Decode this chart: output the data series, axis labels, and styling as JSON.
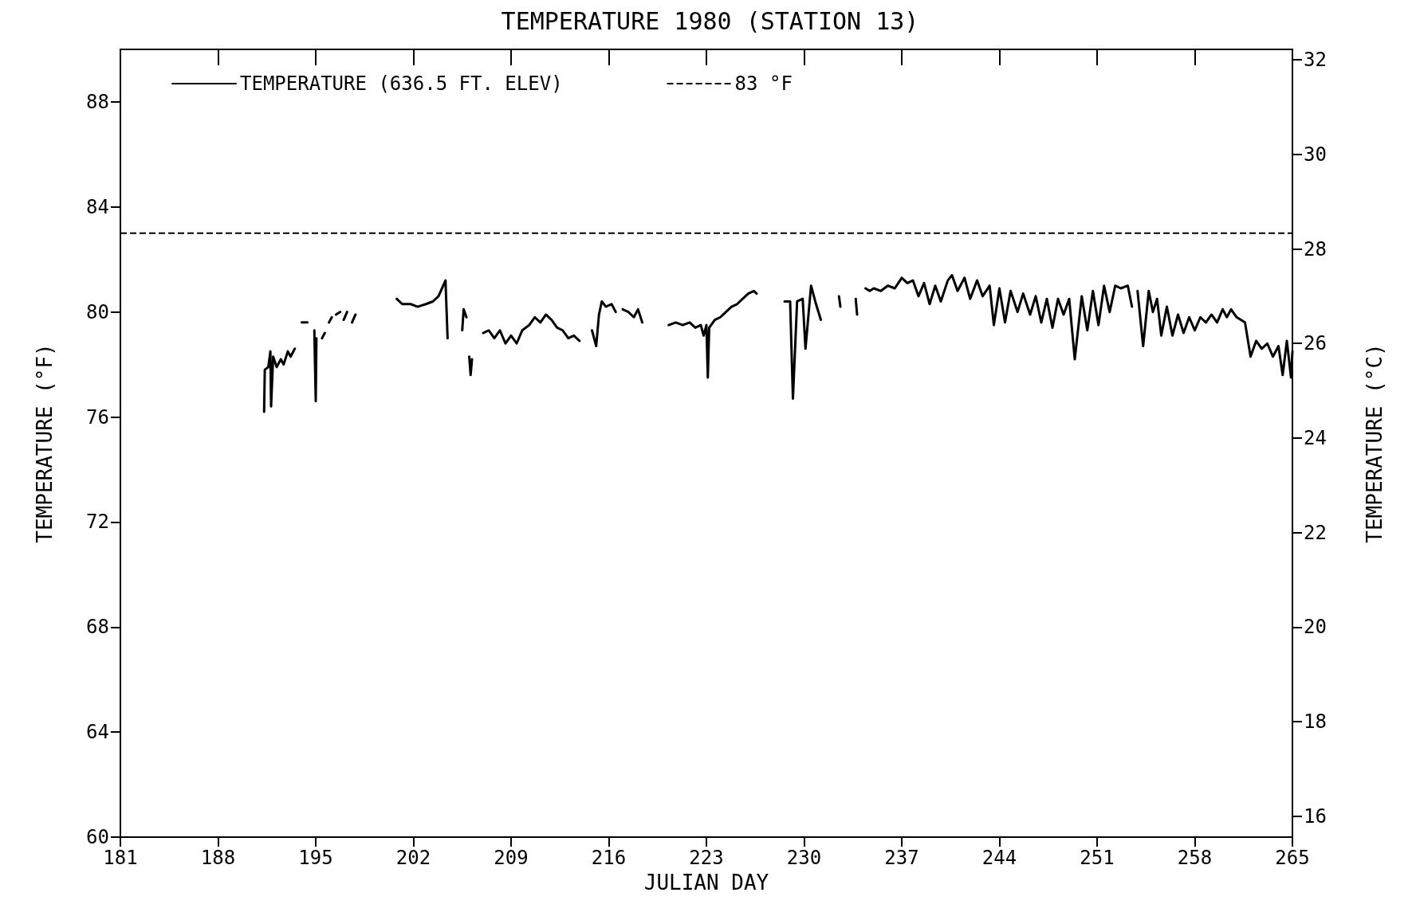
{
  "chart_data": {
    "type": "line",
    "title": "TEMPERATURE 1980 (STATION 13)",
    "xlabel": "JULIAN DAY",
    "ylabel": "TEMPERATURE (°F)",
    "y2label": "TEMPERATURE (°C)",
    "xlim": [
      181,
      265
    ],
    "xticks": [
      181,
      188,
      195,
      202,
      209,
      216,
      223,
      230,
      237,
      244,
      251,
      258,
      265
    ],
    "ylim": [
      60,
      90
    ],
    "yticks": [
      60,
      64,
      68,
      72,
      76,
      80,
      84,
      88
    ],
    "y2lim": [
      15.56,
      32.22
    ],
    "y2ticks": [
      16,
      18,
      20,
      22,
      24,
      26,
      28,
      30,
      32
    ],
    "grid": false,
    "legend": "top left",
    "marker": "none",
    "line_style": "solid",
    "ref_lines": [
      {
        "axis": "y",
        "value": 83,
        "label": "83 °F",
        "color": "#000000",
        "line_style": "dashed"
      }
    ],
    "series": [
      {
        "name": "TEMPERATURE (636.5 FT. ELEV)",
        "color": "#000000",
        "x": [
          191.3,
          191.35,
          191.6,
          191.75,
          191.8,
          191.95,
          192.2,
          192.5,
          192.7,
          193.0,
          193.2,
          193.5,
          193.6,
          194.0,
          194.4,
          194.5,
          194.9,
          195.0,
          195.05,
          195.1,
          195.45,
          195.65,
          195.7,
          195.95,
          196.15,
          196.2,
          196.45,
          196.75,
          196.8,
          197.0,
          197.25,
          197.3,
          197.6,
          197.85,
          197.9,
          200.8,
          201.2,
          201.8,
          202.3,
          202.9,
          203.4,
          203.8,
          204.3,
          204.45,
          204.5,
          205.5,
          205.6,
          205.8,
          205.9,
          206.0,
          206.1,
          206.2,
          206.3,
          207.0,
          207.4,
          207.8,
          208.2,
          208.6,
          209.0,
          209.4,
          209.8,
          210.3,
          210.7,
          211.1,
          211.5,
          211.9,
          212.3,
          212.7,
          213.1,
          213.5,
          213.9,
          214.0,
          214.8,
          215.1,
          215.3,
          215.5,
          215.8,
          216.2,
          216.5,
          216.7,
          217.0,
          217.4,
          217.8,
          218.1,
          218.4,
          218.5,
          220.3,
          220.8,
          221.3,
          221.8,
          222.2,
          222.6,
          222.8,
          223.0,
          223.1,
          223.2,
          223.6,
          224.0,
          224.4,
          224.8,
          225.2,
          225.6,
          226.0,
          226.4,
          226.6,
          226.7,
          228.6,
          229.0,
          229.2,
          229.5,
          229.9,
          230.1,
          230.5,
          230.8,
          231.2,
          231.3,
          232.5,
          232.6,
          232.7,
          233.7,
          233.8,
          233.9,
          234.4,
          234.7,
          235.0,
          235.5,
          236.0,
          236.5,
          237.0,
          237.4,
          237.8,
          238.2,
          238.6,
          239.0,
          239.4,
          239.8,
          240.3,
          240.6,
          241.0,
          241.5,
          241.9,
          242.4,
          242.8,
          243.3,
          243.6,
          244.0,
          244.4,
          244.8,
          245.3,
          245.7,
          246.2,
          246.6,
          247.0,
          247.4,
          247.8,
          248.2,
          248.6,
          249.0,
          249.4,
          249.9,
          250.3,
          250.7,
          251.1,
          251.5,
          251.9,
          252.3,
          252.7,
          253.2,
          253.5,
          253.6,
          253.9,
          254.3,
          254.7,
          255.0,
          255.3,
          255.6,
          256.0,
          256.4,
          256.8,
          257.2,
          257.6,
          258.0,
          258.4,
          258.8,
          259.2,
          259.6,
          260.0,
          260.3,
          260.6,
          261.0,
          261.6,
          262.0,
          262.4,
          262.8,
          263.2,
          263.6,
          264.0,
          264.3,
          264.6,
          264.9,
          265.0
        ],
        "values": [
          76.2,
          77.8,
          77.9,
          78.5,
          76.4,
          78.3,
          77.9,
          78.2,
          78.0,
          78.5,
          78.3,
          78.6,
          null,
          79.6,
          79.6,
          null,
          79.3,
          76.6,
          79.0,
          null,
          79.0,
          79.2,
          null,
          79.6,
          79.8,
          null,
          79.9,
          80.0,
          null,
          79.7,
          80.0,
          null,
          79.6,
          79.9,
          null,
          80.5,
          80.3,
          80.3,
          80.2,
          80.3,
          80.4,
          80.6,
          81.2,
          79.0,
          null,
          79.3,
          80.1,
          79.8,
          null,
          78.3,
          77.6,
          78.2,
          null,
          79.2,
          79.3,
          79.0,
          79.3,
          78.8,
          79.1,
          78.8,
          79.3,
          79.5,
          79.8,
          79.6,
          79.9,
          79.7,
          79.4,
          79.3,
          79.0,
          79.1,
          78.9,
          null,
          79.3,
          78.7,
          79.9,
          80.4,
          80.2,
          80.3,
          80.0,
          null,
          80.1,
          80.0,
          79.8,
          80.1,
          79.6,
          null,
          79.5,
          79.6,
          79.5,
          79.6,
          79.4,
          79.5,
          79.1,
          79.5,
          77.5,
          79.4,
          79.7,
          79.8,
          80.0,
          80.2,
          80.3,
          80.5,
          80.7,
          80.8,
          80.7,
          null,
          80.4,
          80.4,
          76.7,
          80.4,
          80.5,
          78.6,
          81.0,
          80.4,
          79.7,
          null,
          80.6,
          80.2,
          null,
          80.5,
          79.9,
          null,
          80.9,
          80.8,
          80.9,
          80.8,
          81.0,
          80.9,
          81.3,
          81.1,
          81.2,
          80.6,
          81.1,
          80.3,
          81.0,
          80.4,
          81.2,
          81.4,
          80.8,
          81.3,
          80.5,
          81.2,
          80.6,
          81.0,
          79.5,
          80.9,
          79.6,
          80.8,
          80.0,
          80.7,
          79.9,
          80.6,
          79.6,
          80.5,
          79.4,
          80.5,
          79.9,
          80.5,
          78.2,
          80.6,
          79.3,
          80.8,
          79.5,
          81.0,
          80.0,
          81.0,
          80.9,
          81.0,
          80.2,
          null,
          80.8,
          78.7,
          80.8,
          80.0,
          80.5,
          79.1,
          80.2,
          79.1,
          79.9,
          79.2,
          79.8,
          79.3,
          79.8,
          79.6,
          79.9,
          79.6,
          80.1,
          79.8,
          80.1,
          79.8,
          79.6,
          78.3,
          78.9,
          78.6,
          78.8,
          78.3,
          78.7,
          77.6,
          78.9,
          77.5,
          78.5
        ]
      }
    ]
  }
}
